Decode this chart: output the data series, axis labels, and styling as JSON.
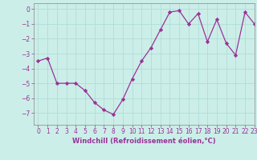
{
  "x": [
    0,
    1,
    2,
    3,
    4,
    5,
    6,
    7,
    8,
    9,
    10,
    11,
    12,
    13,
    14,
    15,
    16,
    17,
    18,
    19,
    20,
    21,
    22,
    23
  ],
  "y": [
    -3.5,
    -3.3,
    -5.0,
    -5.0,
    -5.0,
    -5.5,
    -6.3,
    -6.8,
    -7.1,
    -6.1,
    -4.7,
    -3.5,
    -2.6,
    -1.4,
    -0.2,
    -0.1,
    -1.0,
    -0.3,
    -2.2,
    -0.7,
    -2.3,
    -3.1,
    -0.2,
    -1.0
  ],
  "line_color": "#993399",
  "marker": "D",
  "markersize": 2.2,
  "linewidth": 0.9,
  "xlabel": "Windchill (Refroidissement éolien,°C)",
  "xlabel_fontsize": 6.0,
  "xlim": [
    -0.5,
    23
  ],
  "ylim": [
    -7.8,
    0.4
  ],
  "yticks": [
    0,
    -1,
    -2,
    -3,
    -4,
    -5,
    -6,
    -7
  ],
  "xticks": [
    0,
    1,
    2,
    3,
    4,
    5,
    6,
    7,
    8,
    9,
    10,
    11,
    12,
    13,
    14,
    15,
    16,
    17,
    18,
    19,
    20,
    21,
    22,
    23
  ],
  "background_color": "#cceee8",
  "grid_color": "#b0ddd8",
  "tick_color": "#993399",
  "tick_labelcolor": "#993399",
  "tick_fontsize": 5.5,
  "spine_color": "#888888"
}
